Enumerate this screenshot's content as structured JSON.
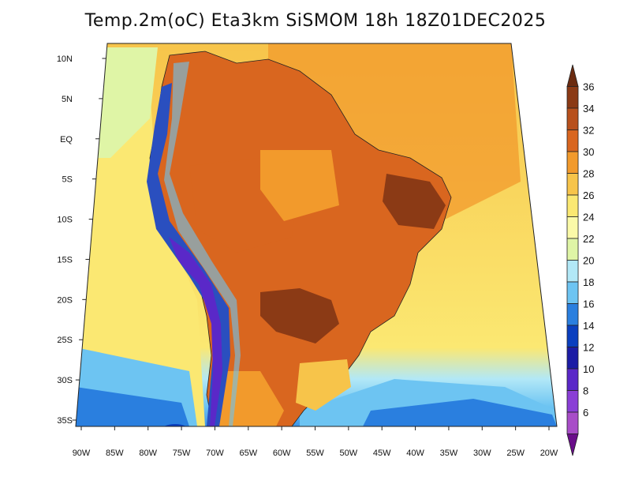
{
  "title": "Temp.2m(oC) Eta3km SiSMOM 18h 18Z01DEC2025",
  "map": {
    "lon_ticks": [
      "90W",
      "85W",
      "80W",
      "75W",
      "70W",
      "65W",
      "60W",
      "55W",
      "50W",
      "45W",
      "40W",
      "35W",
      "30W",
      "25W",
      "20W"
    ],
    "lat_ticks": [
      "10N",
      "5N",
      "EQ",
      "5S",
      "10S",
      "15S",
      "20S",
      "25S",
      "30S",
      "35S"
    ],
    "colorbar": {
      "labels": [
        "36",
        "34",
        "32",
        "30",
        "28",
        "26",
        "24",
        "22",
        "20",
        "18",
        "16",
        "14",
        "12",
        "10",
        "8",
        "6"
      ],
      "colors": [
        "#6b2b10",
        "#8b3a15",
        "#b8501c",
        "#d9661f",
        "#f29a2c",
        "#f7c44a",
        "#fbe872",
        "#fbfaa8",
        "#dff5a6",
        "#b2e8f7",
        "#6dc4f2",
        "#2a7fdf",
        "#0a3fbf",
        "#1c1ca5",
        "#5a28c8",
        "#8a3fd6",
        "#a84dc8",
        "#6a0d8a"
      ]
    },
    "colors": {
      "ocean_warm": "#f7c44a",
      "ocean_cool": "#fbe872",
      "land_hot": "#d9661f",
      "land_very_hot": "#8b3a15",
      "andes_cold": "#2a4fbf",
      "coast_cool": "#6dc4f2"
    }
  }
}
